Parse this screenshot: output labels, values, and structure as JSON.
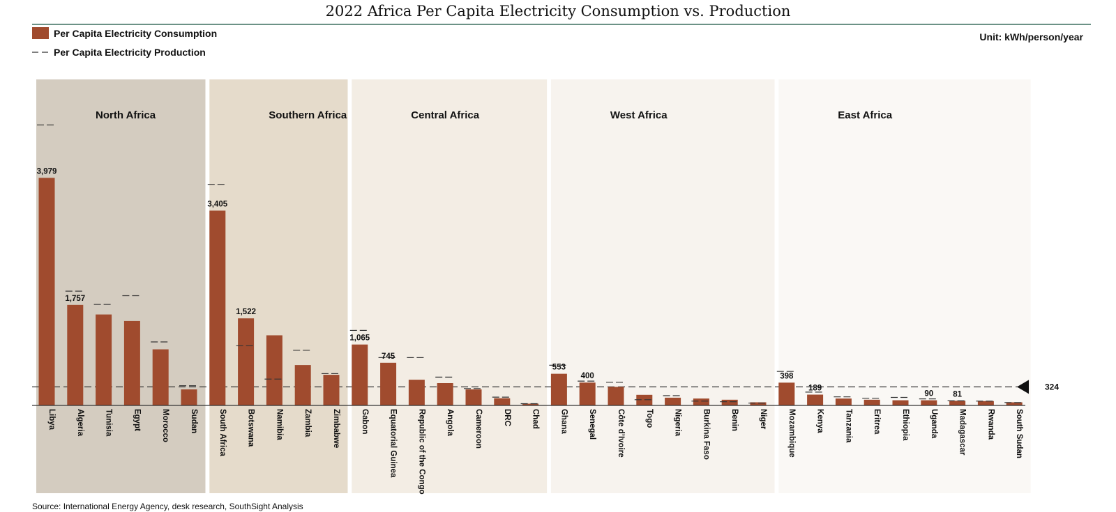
{
  "title": "2022 Africa Per Capita Electricity Consumption vs. Production",
  "unit": "Unit: kWh/person/year",
  "legend": {
    "consumption": "Per Capita Electricity Consumption",
    "production": "Per Capita Electricity Production"
  },
  "source": "Source: International Energy Agency, desk research, SouthSight Analysis",
  "colors": {
    "bar": "#A04B2E",
    "regions": [
      "#D4CCC0",
      "#E5DBCB",
      "#F3EDE4",
      "#F7F3EE",
      "#FAF8F5"
    ],
    "title_rule": "#3C6E5E"
  },
  "chart_data": {
    "type": "bar",
    "title": "2022 Africa Per Capita Electricity Consumption vs. Production",
    "unit": "kWh/person/year",
    "ylim": [
      0,
      5000
    ],
    "reference_line": {
      "value": 324,
      "label": "324"
    },
    "regions": [
      {
        "name": "North Africa",
        "count": 6
      },
      {
        "name": "Southern Africa",
        "count": 5
      },
      {
        "name": "Central Africa",
        "count": 7
      },
      {
        "name": "West Africa",
        "count": 8
      },
      {
        "name": "East Africa",
        "count": 9
      }
    ],
    "categories": [
      "Libya",
      "Algeria",
      "Tunisia",
      "Egypt",
      "Morocco",
      "Sudan",
      "South Africa",
      "Botswana",
      "Namibia",
      "Zambia",
      "Zimbabwe",
      "Gabon",
      "Equatorial Guinea",
      "Republic of the Congo",
      "Angola",
      "Cameroon",
      "DRC",
      "Chad",
      "Ghana",
      "Senegal",
      "Côte d’Ivoire",
      "Togo",
      "Nigeria",
      "Burkina Faso",
      "Benin",
      "Niger",
      "Mozambique",
      "Kenya",
      "Tanzania",
      "Eritrea",
      "Ethiopia",
      "Uganda",
      "Madagascar",
      "Rwanda",
      "South Sudan"
    ],
    "series": [
      {
        "name": "Per Capita Electricity Consumption",
        "values": [
          3979,
          1757,
          1590,
          1475,
          980,
          280,
          3405,
          1522,
          1225,
          705,
          535,
          1065,
          745,
          450,
          390,
          280,
          125,
          30,
          553,
          400,
          324,
          185,
          135,
          120,
          100,
          55,
          398,
          189,
          120,
          100,
          90,
          90,
          81,
          75,
          55
        ],
        "labels": [
          "3,979",
          "1,757",
          "",
          "",
          "",
          "",
          "3,405",
          "1,522",
          "",
          "",
          "",
          "1,065",
          "745",
          "",
          "",
          "",
          "",
          "",
          "553",
          "400",
          "",
          "",
          "",
          "",
          "",
          "",
          "398",
          "189",
          "",
          "",
          "",
          "90",
          "81",
          "",
          ""
        ]
      },
      {
        "name": "Per Capita Electricity Production",
        "style": "dashed-marker",
        "values": [
          4905,
          1998,
          1766,
          1919,
          1110,
          345,
          3865,
          1045,
          460,
          965,
          555,
          1310,
          835,
          835,
          495,
          295,
          145,
          30,
          703,
          425,
          405,
          100,
          170,
          75,
          65,
          40,
          595,
          233,
          150,
          125,
          140,
          115,
          80,
          75,
          50
        ]
      }
    ]
  }
}
